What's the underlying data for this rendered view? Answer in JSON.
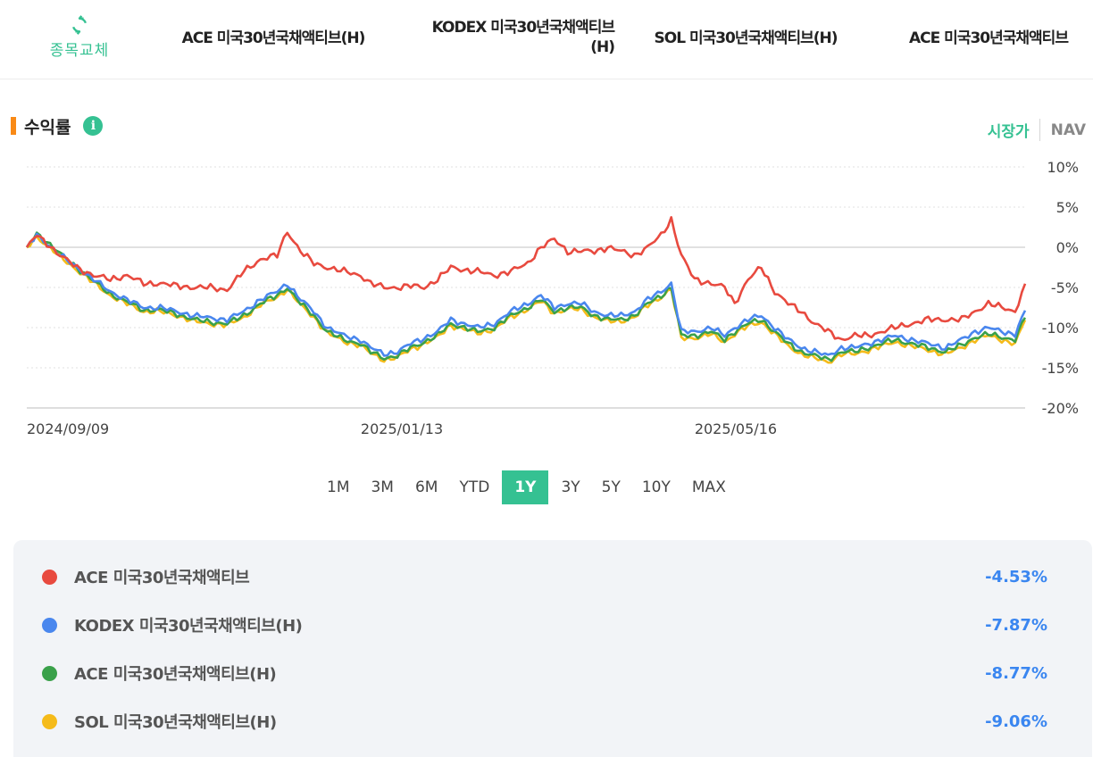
{
  "header": {
    "swap_label": "종목교체",
    "tabs": [
      {
        "label": "ACE 미국30년국채액티브(H)"
      },
      {
        "label": "KODEX 미국30년국채액티브",
        "label2": "(H)"
      },
      {
        "label": "SOL 미국30년국채액티브(H)"
      },
      {
        "label": "ACE 미국30년국채액티브"
      }
    ]
  },
  "section": {
    "title": "수익률",
    "toggle_market": "시장가",
    "toggle_nav": "NAV",
    "accent_color": "#35c192"
  },
  "periods": [
    "1M",
    "3M",
    "6M",
    "YTD",
    "1Y",
    "3Y",
    "5Y",
    "10Y",
    "MAX"
  ],
  "active_period": "1Y",
  "legend": [
    {
      "name": "ACE 미국30년국채액티브",
      "value": "-4.53%",
      "color": "#e84a3f"
    },
    {
      "name": "KODEX 미국30년국채액티브(H)",
      "value": "-7.87%",
      "color": "#4a87ee"
    },
    {
      "name": "ACE 미국30년국채액티브(H)",
      "value": "-8.77%",
      "color": "#3aa14a"
    },
    {
      "name": "SOL 미국30년국채액티브(H)",
      "value": "-9.06%",
      "color": "#f5bb1a"
    }
  ],
  "chart_data": {
    "type": "line",
    "x_tick_labels": [
      "2024/09/09",
      "2025/01/13",
      "2025/05/16"
    ],
    "x_tick_index": [
      0,
      100,
      200
    ],
    "ylim": [
      -20,
      10
    ],
    "y_ticks": [
      10,
      5,
      0,
      -5,
      -10,
      -15,
      -20
    ],
    "y_tick_format": "%",
    "n_points": 300,
    "series": [
      {
        "name": "ACE 미국30년국채액티브",
        "color": "#e84a3f",
        "anchors": [
          [
            0,
            0
          ],
          [
            3,
            1.5
          ],
          [
            6,
            0.5
          ],
          [
            10,
            -1
          ],
          [
            15,
            -2.5
          ],
          [
            20,
            -3.5
          ],
          [
            25,
            -4
          ],
          [
            30,
            -3.5
          ],
          [
            35,
            -4.5
          ],
          [
            40,
            -4.5
          ],
          [
            45,
            -4.8
          ],
          [
            50,
            -5
          ],
          [
            55,
            -5
          ],
          [
            60,
            -5.3
          ],
          [
            65,
            -3
          ],
          [
            70,
            -1.5
          ],
          [
            75,
            -1
          ],
          [
            78,
            2
          ],
          [
            82,
            -0.5
          ],
          [
            86,
            -2
          ],
          [
            90,
            -2.5
          ],
          [
            95,
            -3
          ],
          [
            100,
            -3.5
          ],
          [
            103,
            -4.5
          ],
          [
            107,
            -5
          ],
          [
            111,
            -5
          ],
          [
            115,
            -4.8
          ],
          [
            119,
            -5
          ],
          [
            123,
            -4
          ],
          [
            127,
            -2.5
          ],
          [
            131,
            -2.8
          ],
          [
            135,
            -3
          ],
          [
            140,
            -3.5
          ],
          [
            145,
            -3
          ],
          [
            150,
            -2
          ],
          [
            154,
            0
          ],
          [
            158,
            1
          ],
          [
            162,
            -0.5
          ],
          [
            166,
            -0.5
          ],
          [
            170,
            -0.5
          ],
          [
            174,
            0
          ],
          [
            178,
            -0.5
          ],
          [
            182,
            -1
          ],
          [
            186,
            0
          ],
          [
            190,
            1.5
          ],
          [
            193,
            3.5
          ],
          [
            196,
            -1
          ],
          [
            200,
            -4
          ],
          [
            205,
            -4.5
          ],
          [
            209,
            -5
          ],
          [
            212,
            -7
          ],
          [
            216,
            -4
          ],
          [
            220,
            -2.5
          ],
          [
            224,
            -5.5
          ],
          [
            228,
            -7
          ],
          [
            232,
            -8
          ],
          [
            236,
            -9.5
          ],
          [
            240,
            -10.5
          ],
          [
            244,
            -11.5
          ],
          [
            248,
            -11
          ],
          [
            252,
            -11
          ],
          [
            256,
            -10.5
          ],
          [
            260,
            -10
          ],
          [
            265,
            -9.5
          ],
          [
            270,
            -9
          ],
          [
            275,
            -9
          ],
          [
            280,
            -9
          ],
          [
            284,
            -8
          ],
          [
            288,
            -7
          ],
          [
            292,
            -7.5
          ],
          [
            296,
            -8
          ],
          [
            299,
            -4.53
          ]
        ],
        "amp": 0.45
      },
      {
        "name": "KODEX 미국30년국채액티브(H)",
        "color": "#4a87ee",
        "anchors": [
          [
            0,
            0
          ],
          [
            3,
            1.5
          ],
          [
            6,
            0.5
          ],
          [
            10,
            -1
          ],
          [
            15,
            -2.5
          ],
          [
            20,
            -4
          ],
          [
            25,
            -5.5
          ],
          [
            30,
            -6.5
          ],
          [
            35,
            -7.5
          ],
          [
            40,
            -7.5
          ],
          [
            45,
            -8
          ],
          [
            50,
            -8.5
          ],
          [
            55,
            -8.8
          ],
          [
            60,
            -9
          ],
          [
            65,
            -8
          ],
          [
            70,
            -6.5
          ],
          [
            75,
            -5.5
          ],
          [
            78,
            -4.5
          ],
          [
            82,
            -6.5
          ],
          [
            86,
            -8
          ],
          [
            90,
            -10
          ],
          [
            95,
            -11
          ],
          [
            100,
            -11.5
          ],
          [
            103,
            -12.5
          ],
          [
            107,
            -13.3
          ],
          [
            111,
            -13
          ],
          [
            115,
            -12
          ],
          [
            119,
            -11.3
          ],
          [
            123,
            -10.5
          ],
          [
            127,
            -9
          ],
          [
            131,
            -9.5
          ],
          [
            135,
            -10
          ],
          [
            140,
            -9.5
          ],
          [
            145,
            -8
          ],
          [
            150,
            -7
          ],
          [
            154,
            -6
          ],
          [
            158,
            -7.5
          ],
          [
            162,
            -7
          ],
          [
            166,
            -7
          ],
          [
            170,
            -8
          ],
          [
            174,
            -8.5
          ],
          [
            178,
            -8.5
          ],
          [
            182,
            -8
          ],
          [
            186,
            -6.5
          ],
          [
            190,
            -5.5
          ],
          [
            193,
            -4.5
          ],
          [
            196,
            -10.5
          ],
          [
            200,
            -10.5
          ],
          [
            205,
            -10
          ],
          [
            209,
            -11
          ],
          [
            212,
            -10
          ],
          [
            216,
            -9
          ],
          [
            220,
            -8.5
          ],
          [
            224,
            -10
          ],
          [
            228,
            -11.5
          ],
          [
            232,
            -12.5
          ],
          [
            236,
            -13
          ],
          [
            240,
            -13.5
          ],
          [
            244,
            -12.5
          ],
          [
            248,
            -12.5
          ],
          [
            252,
            -12
          ],
          [
            256,
            -11.5
          ],
          [
            260,
            -11
          ],
          [
            265,
            -11.5
          ],
          [
            270,
            -12
          ],
          [
            275,
            -12.5
          ],
          [
            280,
            -11.5
          ],
          [
            284,
            -10.5
          ],
          [
            288,
            -10
          ],
          [
            292,
            -10.5
          ],
          [
            296,
            -10.8
          ],
          [
            299,
            -7.87
          ]
        ],
        "amp": 0.4
      },
      {
        "name": "ACE 미국30년국채액티브(H)",
        "color": "#3aa14a",
        "anchors": [
          [
            0,
            0
          ],
          [
            3,
            1.7
          ],
          [
            6,
            0.7
          ],
          [
            10,
            -0.8
          ],
          [
            15,
            -2.5
          ],
          [
            20,
            -4.2
          ],
          [
            25,
            -5.8
          ],
          [
            30,
            -6.8
          ],
          [
            35,
            -7.8
          ],
          [
            40,
            -7.8
          ],
          [
            45,
            -8.3
          ],
          [
            50,
            -9
          ],
          [
            55,
            -9.3
          ],
          [
            60,
            -9.5
          ],
          [
            65,
            -8.5
          ],
          [
            70,
            -7
          ],
          [
            75,
            -6
          ],
          [
            78,
            -5
          ],
          [
            82,
            -7
          ],
          [
            86,
            -8.5
          ],
          [
            90,
            -10.5
          ],
          [
            95,
            -11.5
          ],
          [
            100,
            -12
          ],
          [
            103,
            -13
          ],
          [
            107,
            -13.8
          ],
          [
            111,
            -13.5
          ],
          [
            115,
            -12.5
          ],
          [
            119,
            -11.8
          ],
          [
            123,
            -11
          ],
          [
            127,
            -9.5
          ],
          [
            131,
            -10
          ],
          [
            135,
            -10.5
          ],
          [
            140,
            -10
          ],
          [
            145,
            -8.5
          ],
          [
            150,
            -7.5
          ],
          [
            154,
            -6.5
          ],
          [
            158,
            -8
          ],
          [
            162,
            -7.5
          ],
          [
            166,
            -7.5
          ],
          [
            170,
            -8.5
          ],
          [
            174,
            -9
          ],
          [
            178,
            -9
          ],
          [
            182,
            -8.5
          ],
          [
            186,
            -7
          ],
          [
            190,
            -6
          ],
          [
            193,
            -5
          ],
          [
            196,
            -11
          ],
          [
            200,
            -11
          ],
          [
            205,
            -10.5
          ],
          [
            209,
            -11.5
          ],
          [
            212,
            -10.5
          ],
          [
            216,
            -9.5
          ],
          [
            220,
            -9
          ],
          [
            224,
            -10.5
          ],
          [
            228,
            -12
          ],
          [
            232,
            -13
          ],
          [
            236,
            -13.5
          ],
          [
            240,
            -14
          ],
          [
            244,
            -13
          ],
          [
            248,
            -13
          ],
          [
            252,
            -12.5
          ],
          [
            256,
            -12
          ],
          [
            260,
            -11.5
          ],
          [
            265,
            -12
          ],
          [
            270,
            -12.5
          ],
          [
            275,
            -13
          ],
          [
            280,
            -12.2
          ],
          [
            284,
            -11.2
          ],
          [
            288,
            -10.8
          ],
          [
            292,
            -11.2
          ],
          [
            296,
            -11.5
          ],
          [
            299,
            -8.77
          ]
        ],
        "amp": 0.4
      },
      {
        "name": "SOL 미국30년국채액티브(H)",
        "color": "#f5bb1a",
        "anchors": [
          [
            0,
            0
          ],
          [
            3,
            1.3
          ],
          [
            6,
            0.3
          ],
          [
            10,
            -1.2
          ],
          [
            15,
            -2.8
          ],
          [
            20,
            -4.4
          ],
          [
            25,
            -6
          ],
          [
            30,
            -7
          ],
          [
            35,
            -8
          ],
          [
            40,
            -8
          ],
          [
            45,
            -8.5
          ],
          [
            50,
            -9.2
          ],
          [
            55,
            -9.5
          ],
          [
            60,
            -9.7
          ],
          [
            65,
            -8.7
          ],
          [
            70,
            -7.2
          ],
          [
            75,
            -6.2
          ],
          [
            78,
            -5.2
          ],
          [
            82,
            -7.2
          ],
          [
            86,
            -8.7
          ],
          [
            90,
            -10.7
          ],
          [
            95,
            -11.7
          ],
          [
            100,
            -12.2
          ],
          [
            103,
            -13.2
          ],
          [
            107,
            -14
          ],
          [
            111,
            -13.7
          ],
          [
            115,
            -12.7
          ],
          [
            119,
            -12
          ],
          [
            123,
            -11.2
          ],
          [
            127,
            -9.7
          ],
          [
            131,
            -10.2
          ],
          [
            135,
            -10.7
          ],
          [
            140,
            -10.2
          ],
          [
            145,
            -8.7
          ],
          [
            150,
            -7.7
          ],
          [
            154,
            -6.7
          ],
          [
            158,
            -8.2
          ],
          [
            162,
            -7.7
          ],
          [
            166,
            -7.7
          ],
          [
            170,
            -8.7
          ],
          [
            174,
            -9.2
          ],
          [
            178,
            -9.2
          ],
          [
            182,
            -8.7
          ],
          [
            186,
            -7.2
          ],
          [
            190,
            -6.2
          ],
          [
            193,
            -5.2
          ],
          [
            196,
            -11.3
          ],
          [
            200,
            -11.3
          ],
          [
            205,
            -10.8
          ],
          [
            209,
            -11.8
          ],
          [
            212,
            -10.8
          ],
          [
            216,
            -9.8
          ],
          [
            220,
            -9.3
          ],
          [
            224,
            -10.8
          ],
          [
            228,
            -12.3
          ],
          [
            232,
            -13.3
          ],
          [
            236,
            -13.8
          ],
          [
            240,
            -14.3
          ],
          [
            244,
            -13.3
          ],
          [
            248,
            -13.3
          ],
          [
            252,
            -12.8
          ],
          [
            256,
            -12.3
          ],
          [
            260,
            -11.8
          ],
          [
            265,
            -12.3
          ],
          [
            270,
            -12.8
          ],
          [
            275,
            -13.3
          ],
          [
            280,
            -12.5
          ],
          [
            284,
            -11.5
          ],
          [
            288,
            -11
          ],
          [
            292,
            -11.5
          ],
          [
            296,
            -12
          ],
          [
            299,
            -9.06
          ]
        ],
        "amp": 0.4
      }
    ]
  }
}
